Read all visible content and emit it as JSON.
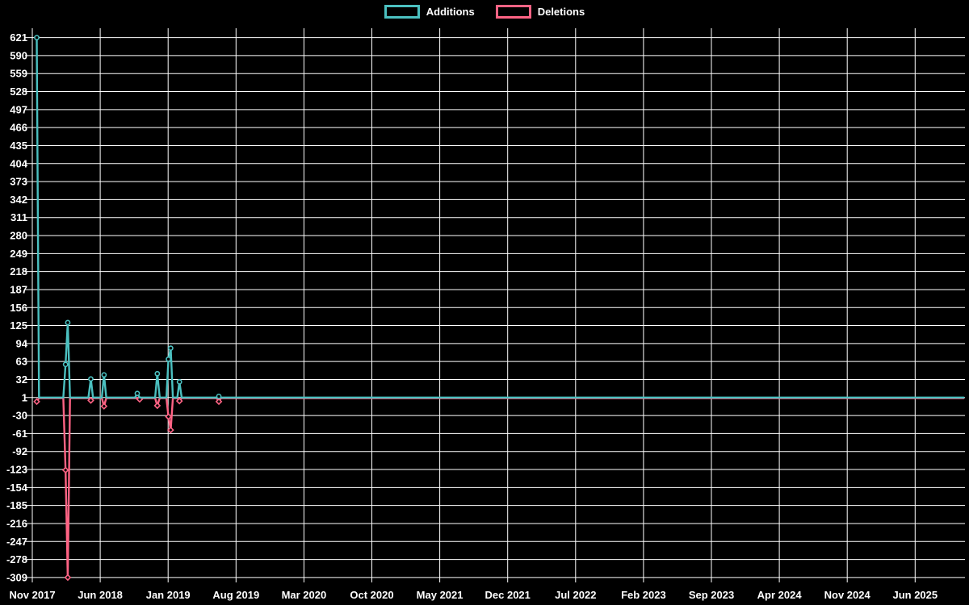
{
  "chart_data": {
    "type": "line",
    "title": "",
    "background_color": "#000000",
    "text_color": "#ffffff",
    "grid": {
      "show": true,
      "color": "#ffffff"
    },
    "legend": {
      "position": "top-center",
      "items": [
        {
          "label": "Additions",
          "color": "#4bc0c0"
        },
        {
          "label": "Deletions",
          "color": "#ff6384"
        }
      ]
    },
    "x_axis": {
      "type": "time",
      "tick_labels": [
        "Nov 2017",
        "Jun 2018",
        "Jan 2019",
        "Aug 2019",
        "Mar 2020",
        "Oct 2020",
        "May 2021",
        "Dec 2021",
        "Jul 2022",
        "Feb 2023",
        "Sep 2023",
        "Apr 2024",
        "Nov 2024",
        "Jun 2025"
      ],
      "tick_interval_months": 7
    },
    "y_axis": {
      "max": 621,
      "min": -309,
      "step": 31,
      "tick_labels": [
        621,
        590,
        559,
        528,
        497,
        466,
        435,
        404,
        373,
        342,
        311,
        280,
        249,
        218,
        187,
        156,
        125,
        94,
        63,
        32,
        1,
        -30,
        -61,
        -92,
        -123,
        -154,
        -185,
        -216,
        -247,
        -278,
        -309
      ]
    },
    "series": [
      {
        "name": "Additions",
        "color": "#4bc0c0",
        "marker": "circle",
        "baseline": 1,
        "points": [
          [
            "2017-11-15",
            621
          ],
          [
            "2017-11-22",
            1
          ],
          [
            "2018-02-07",
            1
          ],
          [
            "2018-02-14",
            58
          ],
          [
            "2018-02-21",
            130
          ],
          [
            "2018-02-28",
            1
          ],
          [
            "2018-04-25",
            1
          ],
          [
            "2018-05-02",
            33
          ],
          [
            "2018-05-09",
            1
          ],
          [
            "2018-06-06",
            1
          ],
          [
            "2018-06-13",
            40
          ],
          [
            "2018-06-20",
            1
          ],
          [
            "2018-09-19",
            1
          ],
          [
            "2018-09-26",
            8
          ],
          [
            "2018-10-03",
            1
          ],
          [
            "2018-11-21",
            1
          ],
          [
            "2018-11-28",
            42
          ],
          [
            "2018-12-05",
            1
          ],
          [
            "2018-12-26",
            1
          ],
          [
            "2019-01-02",
            67
          ],
          [
            "2019-01-09",
            86
          ],
          [
            "2019-01-16",
            1
          ],
          [
            "2019-01-30",
            1
          ],
          [
            "2019-02-06",
            28
          ],
          [
            "2019-02-13",
            1
          ],
          [
            "2019-06-01",
            1
          ],
          [
            "2019-06-08",
            3
          ],
          [
            "2019-06-15",
            1
          ],
          [
            "2025-11-01",
            1
          ]
        ]
      },
      {
        "name": "Deletions",
        "color": "#ff6384",
        "marker": "diamond",
        "baseline": 0,
        "points": [
          [
            "2017-11-15",
            -6
          ],
          [
            "2017-11-22",
            0
          ],
          [
            "2018-02-07",
            0
          ],
          [
            "2018-02-14",
            -124
          ],
          [
            "2018-02-21",
            -309
          ],
          [
            "2018-02-28",
            0
          ],
          [
            "2018-04-25",
            0
          ],
          [
            "2018-05-02",
            -4
          ],
          [
            "2018-05-09",
            0
          ],
          [
            "2018-06-06",
            0
          ],
          [
            "2018-06-13",
            -14
          ],
          [
            "2018-06-20",
            0
          ],
          [
            "2018-09-26",
            0
          ],
          [
            "2018-10-03",
            -2
          ],
          [
            "2018-10-10",
            0
          ],
          [
            "2018-11-21",
            0
          ],
          [
            "2018-11-28",
            -13
          ],
          [
            "2018-12-05",
            0
          ],
          [
            "2018-12-26",
            0
          ],
          [
            "2019-01-02",
            -32
          ],
          [
            "2019-01-09",
            -55
          ],
          [
            "2019-01-16",
            0
          ],
          [
            "2019-01-30",
            0
          ],
          [
            "2019-02-06",
            -5
          ],
          [
            "2019-02-13",
            0
          ],
          [
            "2019-06-01",
            0
          ],
          [
            "2019-06-08",
            -6
          ],
          [
            "2019-06-15",
            0
          ],
          [
            "2025-11-01",
            0
          ]
        ]
      }
    ]
  }
}
